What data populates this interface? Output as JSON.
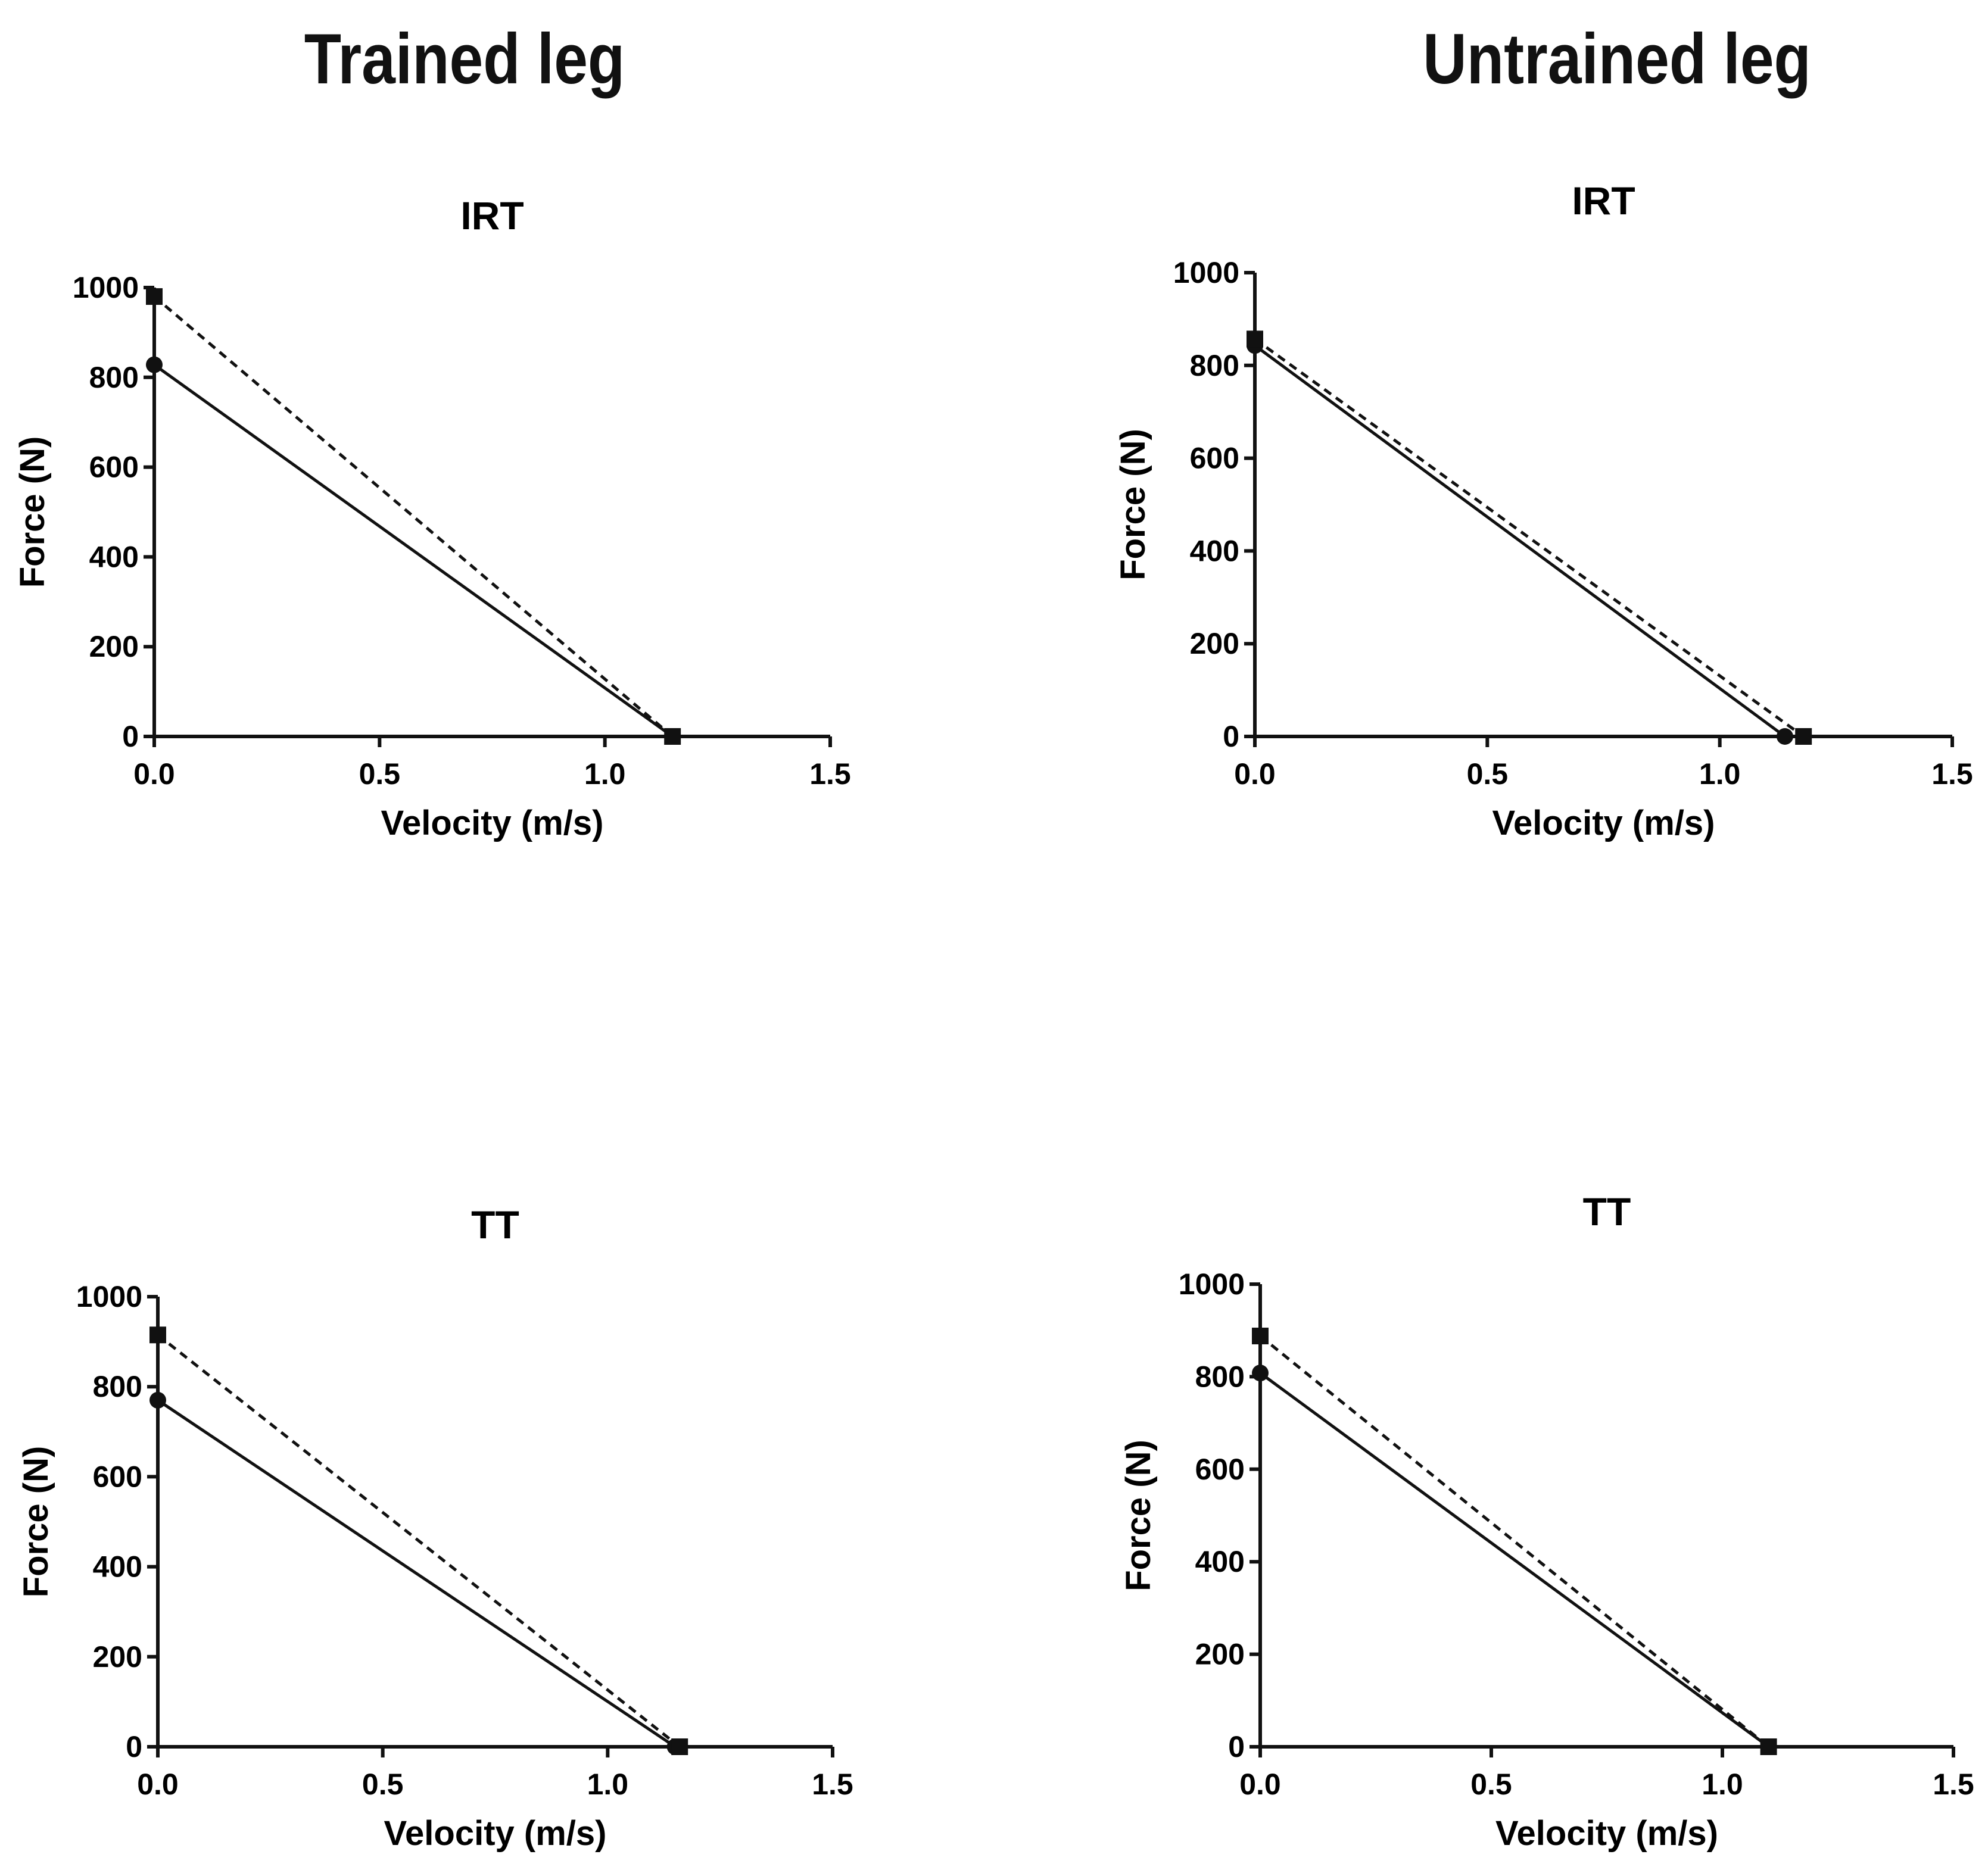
{
  "column_titles": {
    "left": "Trained leg",
    "right": "Untrained leg"
  },
  "chart_data": [
    {
      "type": "line",
      "title": "IRT",
      "group": "Trained leg",
      "xlabel": "Velocity (m/s)",
      "ylabel": "Force (N)",
      "xlim": [
        0,
        1.5
      ],
      "ylim": [
        0,
        1000
      ],
      "xticks": [
        "0.0",
        "0.5",
        "1.0",
        "1.5"
      ],
      "yticks": [
        "0",
        "200",
        "400",
        "600",
        "800",
        "1000"
      ],
      "series": [
        {
          "marker": "circle",
          "style": "solid",
          "x": [
            0,
            1.15
          ],
          "y": [
            828,
            0
          ]
        },
        {
          "marker": "square",
          "style": "dashed",
          "x": [
            0,
            1.15
          ],
          "y": [
            980,
            0
          ]
        }
      ]
    },
    {
      "type": "line",
      "title": "IRT",
      "group": "Untrained leg",
      "xlabel": "Velocity (m/s)",
      "ylabel": "Force (N)",
      "xlim": [
        0,
        1.5
      ],
      "ylim": [
        0,
        1000
      ],
      "xticks": [
        "0.0",
        "0.5",
        "1.0",
        "1.5"
      ],
      "yticks": [
        "0",
        "200",
        "400",
        "600",
        "800",
        "1000"
      ],
      "series": [
        {
          "marker": "circle",
          "style": "solid",
          "x": [
            0,
            1.14
          ],
          "y": [
            843,
            0
          ]
        },
        {
          "marker": "square",
          "style": "dashed",
          "x": [
            0,
            1.18
          ],
          "y": [
            857,
            0
          ]
        }
      ]
    },
    {
      "type": "line",
      "title": "TT",
      "group": "Trained leg",
      "xlabel": "Velocity (m/s)",
      "ylabel": "Force (N)",
      "xlim": [
        0,
        1.5
      ],
      "ylim": [
        0,
        1000
      ],
      "xticks": [
        "0.0",
        "0.5",
        "1.0",
        "1.5"
      ],
      "yticks": [
        "0",
        "200",
        "400",
        "600",
        "800",
        "1000"
      ],
      "series": [
        {
          "marker": "circle",
          "style": "solid",
          "x": [
            0,
            1.15
          ],
          "y": [
            770,
            0
          ]
        },
        {
          "marker": "square",
          "style": "dashed",
          "x": [
            0,
            1.16
          ],
          "y": [
            915,
            0
          ]
        }
      ]
    },
    {
      "type": "line",
      "title": "TT",
      "group": "Untrained leg",
      "xlabel": "Velocity (m/s)",
      "ylabel": "Force (N)",
      "xlim": [
        0,
        1.5
      ],
      "ylim": [
        0,
        1000
      ],
      "xticks": [
        "0.0",
        "0.5",
        "1.0",
        "1.5"
      ],
      "yticks": [
        "0",
        "200",
        "400",
        "600",
        "800",
        "1000"
      ],
      "series": [
        {
          "marker": "circle",
          "style": "solid",
          "x": [
            0,
            1.1
          ],
          "y": [
            808,
            0
          ]
        },
        {
          "marker": "square",
          "style": "dashed",
          "x": [
            0,
            1.1
          ],
          "y": [
            888,
            0
          ]
        }
      ]
    }
  ]
}
